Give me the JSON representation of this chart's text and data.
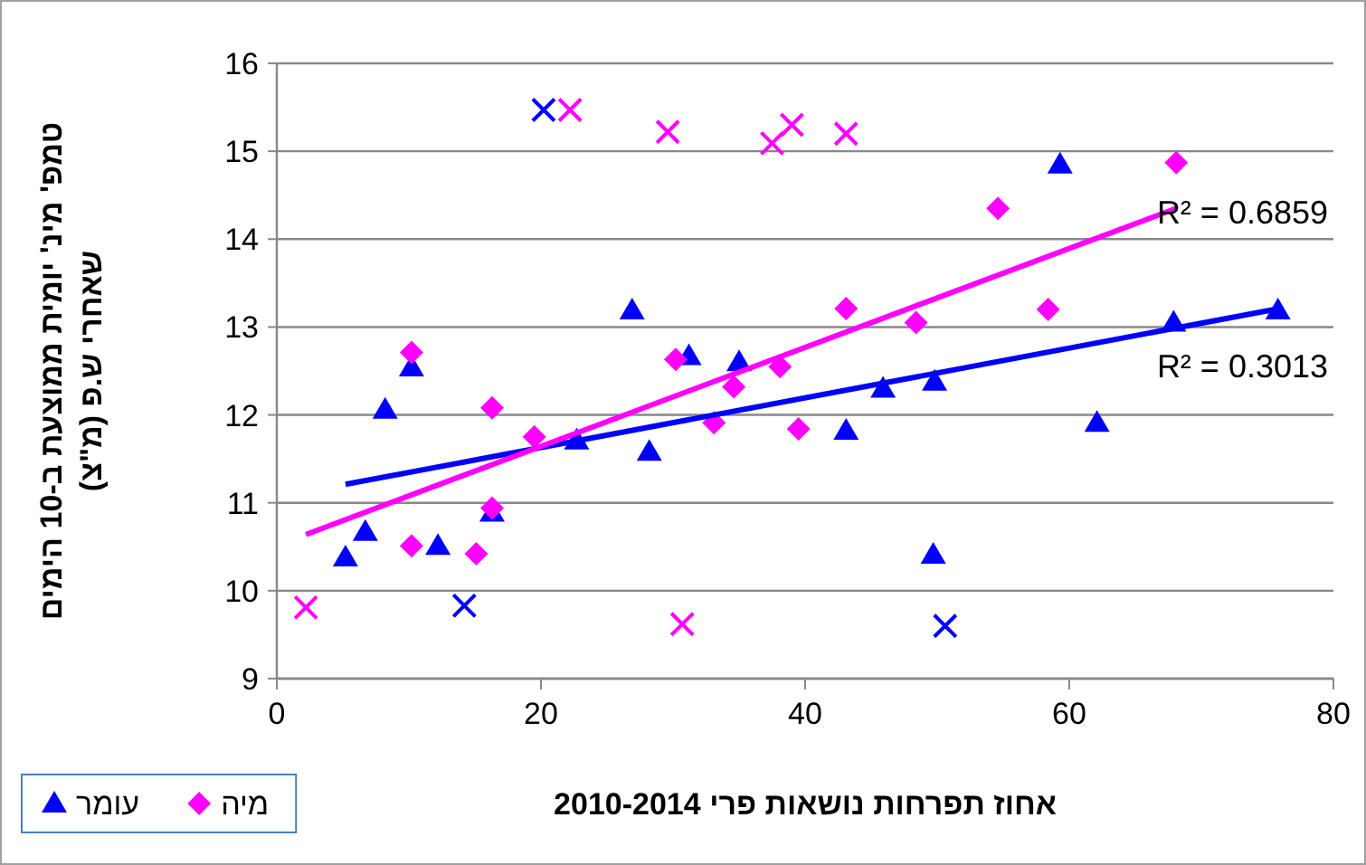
{
  "chart_data": {
    "type": "scatter",
    "xlabel": "אחוז תפרחות נושאות פרי 2010-2014",
    "ylabel": "טמפ' מינ' יומית ממוצעת ב-10 הימים שאחרי ש.פ (מ\"צ)",
    "xlim": [
      0,
      80
    ],
    "xticks": [
      0,
      20,
      40,
      60,
      80
    ],
    "ylim": [
      9,
      16
    ],
    "yticks": [
      9,
      10,
      11,
      12,
      13,
      14,
      15,
      16
    ],
    "grid": "y",
    "legend": "bottom left",
    "series": [
      {
        "name": "עומר",
        "color": "#0000ff",
        "marker": "triangle",
        "x": [
          5.2,
          6.7,
          8.2,
          10.2,
          12.2,
          16.3,
          22.7,
          26.9,
          28.2,
          31.2,
          35.0,
          43.1,
          45.9,
          49.8,
          49.7,
          59.3,
          62.1,
          67.9,
          75.8
        ],
        "values": [
          10.38,
          10.67,
          12.06,
          12.54,
          10.51,
          10.89,
          11.71,
          13.19,
          11.58,
          12.67,
          12.6,
          11.82,
          12.3,
          12.38,
          10.41,
          14.85,
          11.91,
          13.05,
          13.19
        ]
      },
      {
        "name": "מיה",
        "color": "#ff00ff",
        "marker": "diamond",
        "x": [
          10.2,
          10.2,
          16.3,
          16.3,
          15.1,
          19.5,
          30.2,
          33.1,
          34.6,
          38.1,
          39.5,
          43.1,
          48.4,
          54.6,
          58.4,
          68.1
        ],
        "values": [
          12.71,
          10.51,
          12.08,
          10.94,
          10.42,
          11.75,
          12.63,
          11.91,
          12.32,
          12.55,
          11.84,
          13.21,
          13.05,
          14.35,
          13.2,
          14.87
        ]
      },
      {
        "color": "#0000ff",
        "marker": "cross",
        "x": [
          20.2,
          14.2,
          50.6
        ],
        "values": [
          15.47,
          9.83,
          9.6
        ]
      },
      {
        "color": "#ff00ff",
        "marker": "cross",
        "x": [
          2.2,
          22.2,
          29.6,
          37.5,
          39.0,
          30.7,
          43.1
        ],
        "values": [
          9.81,
          15.47,
          15.22,
          15.09,
          15.3,
          9.62,
          15.2
        ]
      },
      {
        "type": "line",
        "color": "#0000ff",
        "marker": "none",
        "x": [
          5.2,
          75.9
        ],
        "values": [
          11.21,
          13.21
        ]
      },
      {
        "type": "line",
        "color": "#ff00ff",
        "marker": "none",
        "x": [
          2.2,
          68.1
        ],
        "values": [
          10.64,
          14.35
        ]
      }
    ],
    "annotations": [
      "R² = 0.6859",
      "R² = 0.3013"
    ]
  }
}
